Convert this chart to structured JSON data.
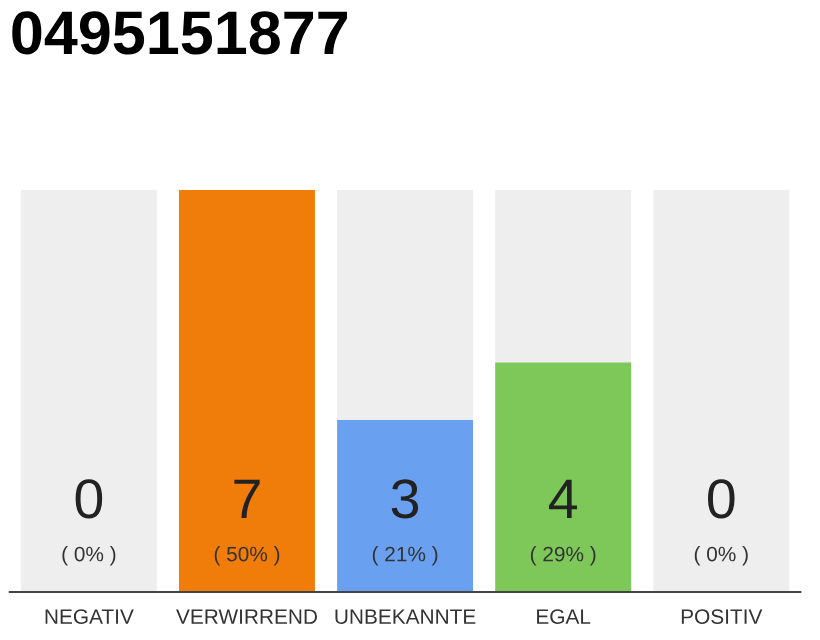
{
  "chart_data": {
    "type": "bar",
    "title": "0495151877",
    "categories": [
      "NEGATIV",
      "VERWIRREND",
      "UNBEKANNTE",
      "EGAL",
      "POSITIV"
    ],
    "stacked": true,
    "series": [
      {
        "colors": [
          "#f07d0a",
          "#f07d0a",
          "#6aa0f0",
          "#7ec85a",
          "#7ec85a"
        ],
        "values": [
          0,
          7,
          3,
          4,
          0
        ],
        "value_labels": [
          null,
          "7",
          "3",
          "4",
          null
        ]
      },
      {
        "color": "#eeeeee",
        "values": [
          7,
          0,
          4,
          3,
          7
        ]
      }
    ],
    "annotations": [
      "( 0% )",
      "( 50% )",
      "( 21% )",
      "( 29% )",
      "( 0% )",
      "0",
      "0"
    ],
    "grid": false,
    "legend": false
  }
}
